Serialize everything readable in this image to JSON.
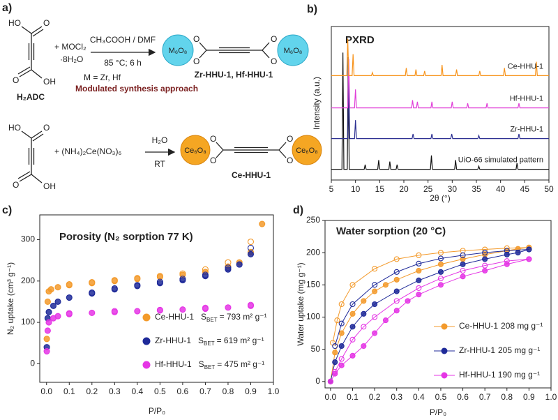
{
  "scheme": {
    "label": "a)",
    "acid_atoms": [
      "HO",
      "O",
      "O",
      "OH"
    ],
    "acid_name": "H₂ADC",
    "reagent_1": "+ MOCl₂",
    "hydrate": "·8H₂O",
    "conditions_1_top": "CH₃COOH / DMF",
    "conditions_1_bottom": "85 °C; 6 h",
    "metal_note": "M = Zr, Hf",
    "approach": "Modulated synthesis approach",
    "cluster_1": "M₆O₈",
    "linker_oxygen": "O",
    "product_1": "Zr-HHU-1, Hf-HHU-1",
    "reagent_2": "+ (NH₄)₂Ce(NO₃)₆",
    "conditions_2_top": "H₂O",
    "conditions_2_bottom": "RT",
    "cluster_2": "Ce₆O₈",
    "product_2": "Ce-HHU-1"
  },
  "chart_data": [
    {
      "type": "line",
      "panel_label": "b)",
      "title": "PXRD",
      "xlabel": "2θ (°)",
      "ylabel": "Intensity (a.u.)",
      "legend": "inline",
      "markers": false,
      "xlim": [
        5,
        50
      ],
      "xticks": [
        5,
        10,
        15,
        20,
        25,
        30,
        35,
        40,
        45,
        50
      ],
      "ylim": [
        0,
        100
      ],
      "series": [
        {
          "name": "UiO-66 simulated pattern",
          "color": "#111111",
          "x": [
            5,
            7.2,
            7.4,
            7.6,
            8.3,
            8.5,
            8.7,
            11.8,
            12.0,
            12.2,
            14.6,
            14.8,
            15.0,
            16.9,
            17.1,
            17.3,
            18.4,
            18.6,
            18.8,
            25.5,
            25.7,
            25.9,
            30.5,
            30.7,
            30.9,
            35.3,
            35.5,
            35.7,
            43.2,
            43.4,
            43.6,
            50
          ],
          "values": [
            7,
            7,
            83,
            7,
            7,
            80,
            7,
            7,
            10,
            7,
            7,
            13,
            7,
            7,
            12,
            7,
            7,
            10,
            7,
            7,
            16,
            7,
            7,
            13,
            7,
            7,
            9,
            7,
            7,
            11,
            7,
            7
          ]
        },
        {
          "name": "Zr-HHU-1",
          "color": "#2e3192",
          "x": [
            5,
            8.4,
            8.6,
            8.8,
            9.8,
            10.0,
            10.2,
            21.7,
            21.9,
            22.1,
            25.6,
            25.8,
            26.0,
            29.7,
            29.9,
            30.1,
            35.3,
            35.5,
            35.7,
            43.6,
            43.8,
            44.0,
            50
          ],
          "values": [
            27,
            27,
            69,
            27,
            27,
            39,
            27,
            27,
            30,
            27,
            27,
            30,
            27,
            27,
            30,
            27,
            27,
            29,
            27,
            27,
            30,
            27,
            27
          ]
        },
        {
          "name": "Hf-HHU-1",
          "color": "#e040d8",
          "x": [
            5,
            8.4,
            8.6,
            8.8,
            9.8,
            10.0,
            10.2,
            21.6,
            21.8,
            22.0,
            22.6,
            22.8,
            23.0,
            25.6,
            25.8,
            26.0,
            29.8,
            30.0,
            30.2,
            33.0,
            33.2,
            33.4,
            37.0,
            37.2,
            37.4,
            43.6,
            43.8,
            44.0,
            50
          ],
          "values": [
            47,
            47,
            79,
            47,
            47,
            59,
            47,
            47,
            52,
            47,
            47,
            51,
            47,
            47,
            51,
            47,
            47,
            51,
            47,
            47,
            50,
            47,
            47,
            50,
            47,
            47,
            50,
            47,
            47
          ]
        },
        {
          "name": "Ce-HHU-1",
          "color": "#f7941d",
          "x": [
            5,
            8.2,
            8.4,
            8.6,
            9.3,
            9.5,
            9.7,
            13.3,
            13.5,
            13.7,
            20.3,
            20.5,
            20.7,
            22.3,
            22.5,
            22.7,
            24.1,
            24.3,
            24.5,
            27.7,
            27.9,
            28.1,
            30.7,
            30.9,
            31.1,
            35.5,
            35.7,
            35.9,
            40.6,
            40.8,
            41.0,
            47.2,
            47.4,
            47.6,
            50
          ],
          "values": [
            68,
            68,
            92,
            68,
            68,
            82,
            68,
            68,
            70,
            68,
            68,
            73,
            68,
            68,
            72,
            68,
            68,
            71,
            68,
            68,
            75,
            68,
            68,
            72,
            68,
            68,
            71,
            68,
            68,
            73,
            68,
            68,
            77,
            68,
            68
          ]
        }
      ]
    },
    {
      "type": "scatter",
      "panel_label": "c)",
      "title": "Porosity (N₂ sorption 77 K)",
      "xlabel": "P/P₀",
      "ylabel": "N₂ uptake (cm³ g⁻¹)",
      "legend": "lower right",
      "xlim": [
        -0.03,
        1.0
      ],
      "xticks": [
        {
          "value": 0,
          "label": "0.0"
        },
        {
          "value": 0.1,
          "label": "0.1"
        },
        {
          "value": 0.2,
          "label": "0.2"
        },
        {
          "value": 0.3,
          "label": "0.3"
        },
        {
          "value": 0.4,
          "label": "0.4"
        },
        {
          "value": 0.5,
          "label": "0.5"
        },
        {
          "value": 0.6,
          "label": "0.6"
        },
        {
          "value": 0.7,
          "label": "0.7"
        },
        {
          "value": 0.8,
          "label": "0.8"
        },
        {
          "value": 0.9,
          "label": "0.9"
        },
        {
          "value": 1,
          "label": "1.0"
        }
      ],
      "ylim": [
        -45,
        360
      ],
      "yticks": [
        0,
        100,
        200,
        300
      ],
      "series": [
        {
          "name": "Ce-HHU-1",
          "color": "#f39a2b",
          "sbet": {
            "symbol": "S",
            "subscript": "BET",
            "value": "= 793 m² g⁻¹"
          },
          "x": [
            0.001,
            0.005,
            0.01,
            0.02,
            0.05,
            0.1,
            0.2,
            0.3,
            0.4,
            0.5,
            0.6,
            0.7,
            0.8,
            0.85,
            0.9,
            0.95
          ],
          "values": [
            60,
            150,
            175,
            180,
            185,
            190,
            195,
            200,
            205,
            210,
            215,
            222,
            235,
            245,
            270,
            338
          ],
          "desorption_x": [
            0.9,
            0.8,
            0.7,
            0.6,
            0.5,
            0.4,
            0.3,
            0.2,
            0.1
          ],
          "desorption_values": [
            295,
            245,
            228,
            218,
            212,
            207,
            202,
            197,
            192
          ]
        },
        {
          "name": "Zr-HHU-1",
          "color": "#1f2a99",
          "sbet": {
            "symbol": "S",
            "subscript": "BET",
            "value": "= 619 m² g⁻¹"
          },
          "x": [
            0.001,
            0.005,
            0.01,
            0.03,
            0.05,
            0.1,
            0.2,
            0.3,
            0.4,
            0.5,
            0.6,
            0.7,
            0.8,
            0.85,
            0.9
          ],
          "values": [
            40,
            110,
            125,
            140,
            150,
            160,
            170,
            180,
            188,
            195,
            202,
            212,
            228,
            240,
            265
          ],
          "desorption_x": [
            0.9,
            0.8,
            0.7,
            0.6,
            0.5,
            0.4,
            0.3,
            0.2
          ],
          "desorption_values": [
            280,
            232,
            215,
            205,
            198,
            190,
            182,
            172
          ]
        },
        {
          "name": "Hf-HHU-1",
          "color": "#e535e5",
          "sbet": {
            "symbol": "S",
            "subscript": "BET",
            "value": "= 475 m² g⁻¹"
          },
          "x": [
            0.001,
            0.005,
            0.01,
            0.03,
            0.05,
            0.1,
            0.2,
            0.3,
            0.4,
            0.5,
            0.6,
            0.7,
            0.8,
            0.9
          ],
          "values": [
            30,
            80,
            100,
            110,
            115,
            120,
            123,
            125,
            127,
            129,
            131,
            133,
            136,
            140
          ],
          "desorption_x": [
            0.9,
            0.7,
            0.5,
            0.3,
            0.1
          ],
          "desorption_values": [
            142,
            135,
            130,
            127,
            122
          ]
        }
      ]
    },
    {
      "type": "line",
      "panel_label": "d)",
      "title": "Water sorption (20 °C)",
      "xlabel": "P/P₀",
      "ylabel": "Water uptake (mg g⁻¹)",
      "legend": "lower right",
      "markers": true,
      "xlim": [
        -0.025,
        1.0
      ],
      "xticks": [
        {
          "value": 0,
          "label": "0.0"
        },
        {
          "value": 0.1,
          "label": "0.1"
        },
        {
          "value": 0.2,
          "label": "0.2"
        },
        {
          "value": 0.3,
          "label": "0.3"
        },
        {
          "value": 0.4,
          "label": "0.4"
        },
        {
          "value": 0.5,
          "label": "0.5"
        },
        {
          "value": 0.6,
          "label": "0.6"
        },
        {
          "value": 0.7,
          "label": "0.7"
        },
        {
          "value": 0.8,
          "label": "0.8"
        },
        {
          "value": 0.9,
          "label": "0.9"
        },
        {
          "value": 1,
          "label": "1.0"
        }
      ],
      "ylim": [
        -10,
        250
      ],
      "yticks": [
        0,
        50,
        100,
        150,
        200,
        250
      ],
      "series": [
        {
          "name": "Ce-HHU-1",
          "color": "#f39a2b",
          "capacity": "208 mg g⁻¹",
          "x": [
            0,
            0.02,
            0.05,
            0.1,
            0.15,
            0.2,
            0.25,
            0.3,
            0.4,
            0.5,
            0.6,
            0.7,
            0.8,
            0.85,
            0.9
          ],
          "values": [
            0,
            45,
            75,
            105,
            125,
            140,
            150,
            158,
            172,
            182,
            190,
            197,
            203,
            206,
            208
          ],
          "desorption_x": [
            0.9,
            0.8,
            0.7,
            0.6,
            0.5,
            0.4,
            0.3,
            0.2,
            0.1,
            0.05,
            0.03,
            0.01
          ],
          "desorption_values": [
            208,
            207,
            205,
            203,
            200,
            196,
            190,
            175,
            150,
            120,
            95,
            60
          ]
        },
        {
          "name": "Zr-HHU-1",
          "color": "#1f2a99",
          "capacity": "205 mg g⁻¹",
          "x": [
            0,
            0.02,
            0.05,
            0.1,
            0.15,
            0.2,
            0.3,
            0.4,
            0.5,
            0.6,
            0.7,
            0.8,
            0.85,
            0.9
          ],
          "values": [
            0,
            30,
            55,
            85,
            105,
            120,
            140,
            157,
            170,
            182,
            190,
            197,
            200,
            205
          ],
          "desorption_x": [
            0.9,
            0.8,
            0.7,
            0.6,
            0.5,
            0.4,
            0.3,
            0.2,
            0.1,
            0.05,
            0.02
          ],
          "desorption_values": [
            205,
            203,
            200,
            196,
            191,
            183,
            170,
            150,
            120,
            90,
            55
          ]
        },
        {
          "name": "Hf-HHU-1",
          "color": "#e535e5",
          "capacity": "190 mg g⁻¹",
          "x": [
            0,
            0.02,
            0.05,
            0.1,
            0.15,
            0.2,
            0.25,
            0.3,
            0.35,
            0.4,
            0.5,
            0.6,
            0.7,
            0.8,
            0.9
          ],
          "values": [
            0,
            12,
            25,
            40,
            55,
            75,
            95,
            110,
            125,
            135,
            150,
            163,
            172,
            182,
            190
          ],
          "desorption_x": [
            0.9,
            0.8,
            0.7,
            0.6,
            0.5,
            0.4,
            0.3,
            0.2,
            0.15,
            0.1,
            0.05,
            0.02
          ],
          "desorption_values": [
            190,
            187,
            180,
            172,
            160,
            145,
            125,
            100,
            85,
            65,
            35,
            15
          ]
        }
      ]
    }
  ]
}
